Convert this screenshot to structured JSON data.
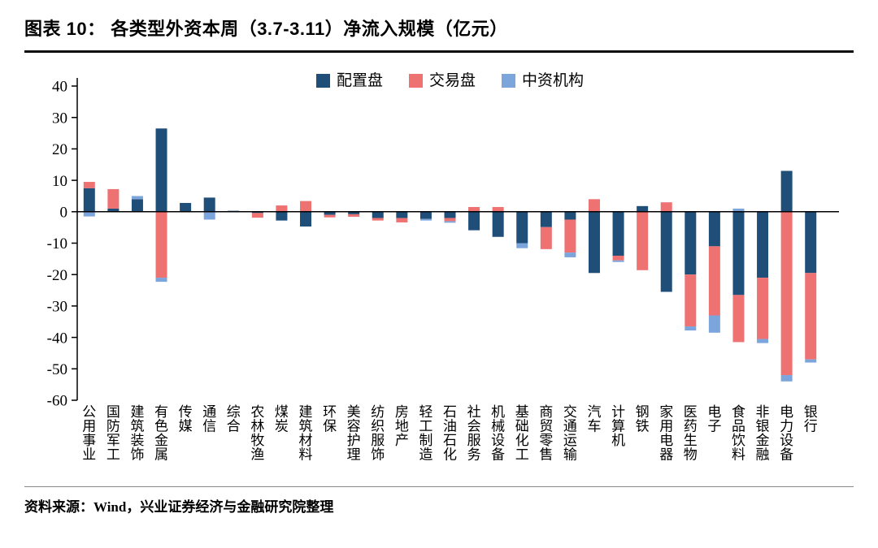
{
  "header": {
    "title": "图表 10： 各类型外资本周（3.7-3.11）净流入规模（亿元）"
  },
  "footer": {
    "source": "资料来源：Wind，兴业证券经济与金融研究院整理"
  },
  "chart_data": {
    "type": "bar",
    "stacked": true,
    "title": "各类型外资本周（3.7-3.11）净流入规模（亿元）",
    "xlabel": "",
    "ylabel": "",
    "ylim": [
      -60,
      40
    ],
    "ytick_step": 10,
    "grid": false,
    "legend_position": "top",
    "categories": [
      "公用事业",
      "国防军工",
      "建筑装饰",
      "有色金属",
      "传媒",
      "通信",
      "综合",
      "农林牧渔",
      "煤炭",
      "建筑材料",
      "环保",
      "美容护理",
      "纺织服饰",
      "房地产",
      "轻工制造",
      "石油石化",
      "社会服务",
      "机械设备",
      "基础化工",
      "商贸零售",
      "交通运输",
      "汽车",
      "计算机",
      "钢铁",
      "家用电器",
      "医药生物",
      "电子",
      "食品饮料",
      "非银金融",
      "电力设备",
      "银行"
    ],
    "series": [
      {
        "name": "配置盘",
        "color": "#1F4E79",
        "values": [
          7.5,
          1.0,
          4.0,
          26.5,
          2.8,
          4.5,
          0.3,
          -0.4,
          -2.8,
          -4.7,
          -1.0,
          -0.8,
          -2.0,
          -2.0,
          -2.3,
          -2.0,
          -5.9,
          -8.0,
          -10.0,
          -4.9,
          -2.5,
          -19.5,
          -14.0,
          1.8,
          -25.5,
          -20.0,
          -11.0,
          -26.5,
          -21.0,
          13.0,
          -19.5
        ]
      },
      {
        "name": "交易盘",
        "color": "#EF7273",
        "values": [
          2.0,
          6.2,
          0,
          -21.0,
          0,
          0,
          0,
          -1.5,
          2.0,
          3.4,
          -0.8,
          -0.8,
          -0.8,
          -1.4,
          0,
          -1.0,
          1.5,
          1.5,
          0,
          -7.0,
          -10.5,
          4.0,
          -1.5,
          -18.6,
          3.0,
          -16.5,
          -22.0,
          -15.0,
          -19.5,
          -52.0,
          -27.5
        ]
      },
      {
        "name": "中资机构",
        "color": "#7CA5DC",
        "values": [
          -1.5,
          0,
          1.0,
          -1.3,
          0,
          -2.5,
          0,
          0,
          0,
          0,
          0,
          0,
          0,
          0,
          -0.5,
          -0.5,
          0,
          0,
          -1.6,
          0,
          -1.5,
          0,
          -0.5,
          0,
          0,
          -1.3,
          -5.5,
          1.0,
          -1.3,
          -2.0,
          -1.0
        ]
      }
    ]
  }
}
